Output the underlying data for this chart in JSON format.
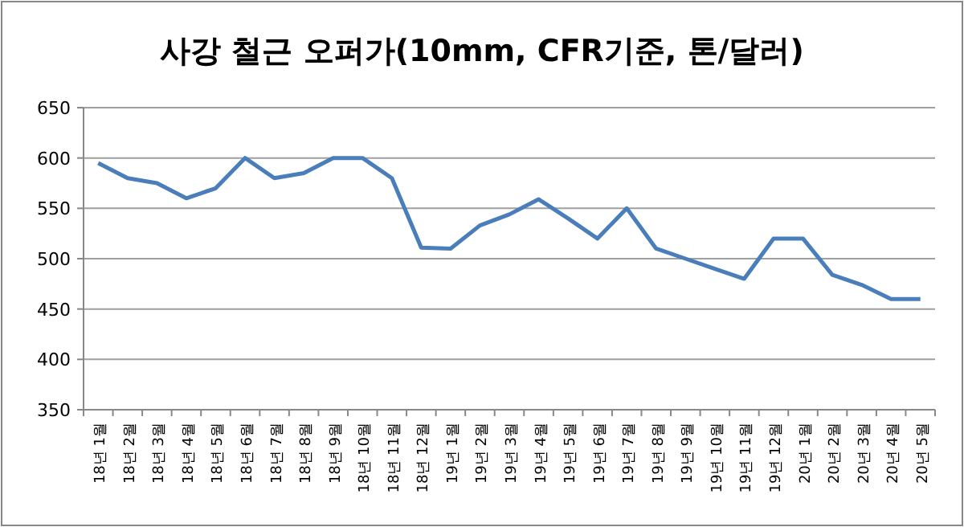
{
  "chart_data": {
    "type": "line",
    "title": "사강 철근 오퍼가(10mm, CFR기준, 톤/달러)",
    "categories": [
      "18년 1월",
      "18년 2월",
      "18년 3월",
      "18년 4월",
      "18년 5월",
      "18년 6월",
      "18년 7월",
      "18년 8월",
      "18년 9월",
      "18년 10월",
      "18년 11월",
      "18년 12월",
      "19년 1월",
      "19년 2월",
      "19년 3월",
      "19년 4월",
      "19년 5월",
      "19년 6월",
      "19년 7월",
      "19년 8월",
      "19년 9월",
      "19년 10월",
      "19년 11월",
      "19년 12월",
      "20년 1월",
      "20년 2월",
      "20년 3월",
      "20년 4월",
      "20년 5월"
    ],
    "series": [
      {
        "color": "#4a7ebb",
        "values": [
          595,
          580,
          575,
          560,
          570,
          600,
          580,
          585,
          600,
          600,
          580,
          511,
          510,
          533,
          544,
          559,
          540,
          520,
          550,
          510,
          500,
          490,
          480,
          520,
          520,
          484,
          474,
          460,
          460
        ]
      }
    ],
    "ylim": [
      350,
      650
    ],
    "yticks": [
      350,
      400,
      450,
      500,
      550,
      600,
      650
    ],
    "grid": "y",
    "marker": "none",
    "line_style": "solid"
  }
}
